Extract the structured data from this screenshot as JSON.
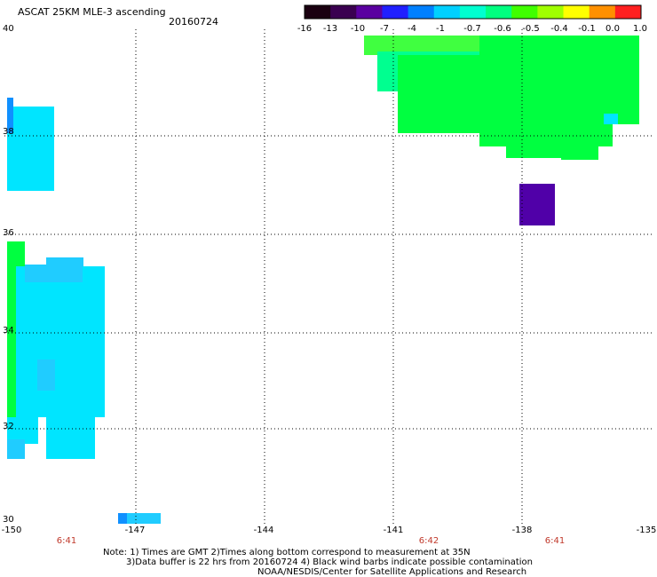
{
  "header": {
    "title": "ASCAT 25KM MLE-3 ascending",
    "date": "20160724"
  },
  "colorbar": {
    "labels": [
      "-16",
      "-13",
      "-10",
      "-7",
      "-4",
      "-1",
      "-0.7",
      "-0.6",
      "-0.5",
      "-0.4",
      "-0.1",
      "0.0",
      "1.0"
    ],
    "colors": [
      "#1a0010",
      "#3a0050",
      "#5a00a0",
      "#2020ff",
      "#0080ff",
      "#00d0ff",
      "#00ffd0",
      "#00ff80",
      "#40ff00",
      "#a0ff00",
      "#ffff00",
      "#ff9000",
      "#ff2020"
    ]
  },
  "axes": {
    "y_labels": [
      "40",
      "38",
      "36",
      "34",
      "32",
      "30"
    ],
    "x_labels": [
      "-150",
      "-147",
      "-144",
      "-141",
      "-138",
      "-135"
    ],
    "time_labels": [
      "6:41",
      "6:42",
      "6:41"
    ]
  },
  "notes": {
    "line1": "Note: 1) Times are GMT 2)Times along bottom correspond to measurement at 35N",
    "line2": "3)Data buffer is 22 hrs from 20160724 4) Black wind barbs indicate possible contamination",
    "line3": "NOAA/NESDIS/Center for Satellite Applications and Research"
  },
  "swath_colors": {
    "green": "#00ff40",
    "lightgreen": "#40ff40",
    "aquagreen": "#00ff90",
    "cyan": "#00e5ff",
    "lightblue": "#20ccff",
    "blue": "#1090ff",
    "purple": "#5000a8"
  }
}
